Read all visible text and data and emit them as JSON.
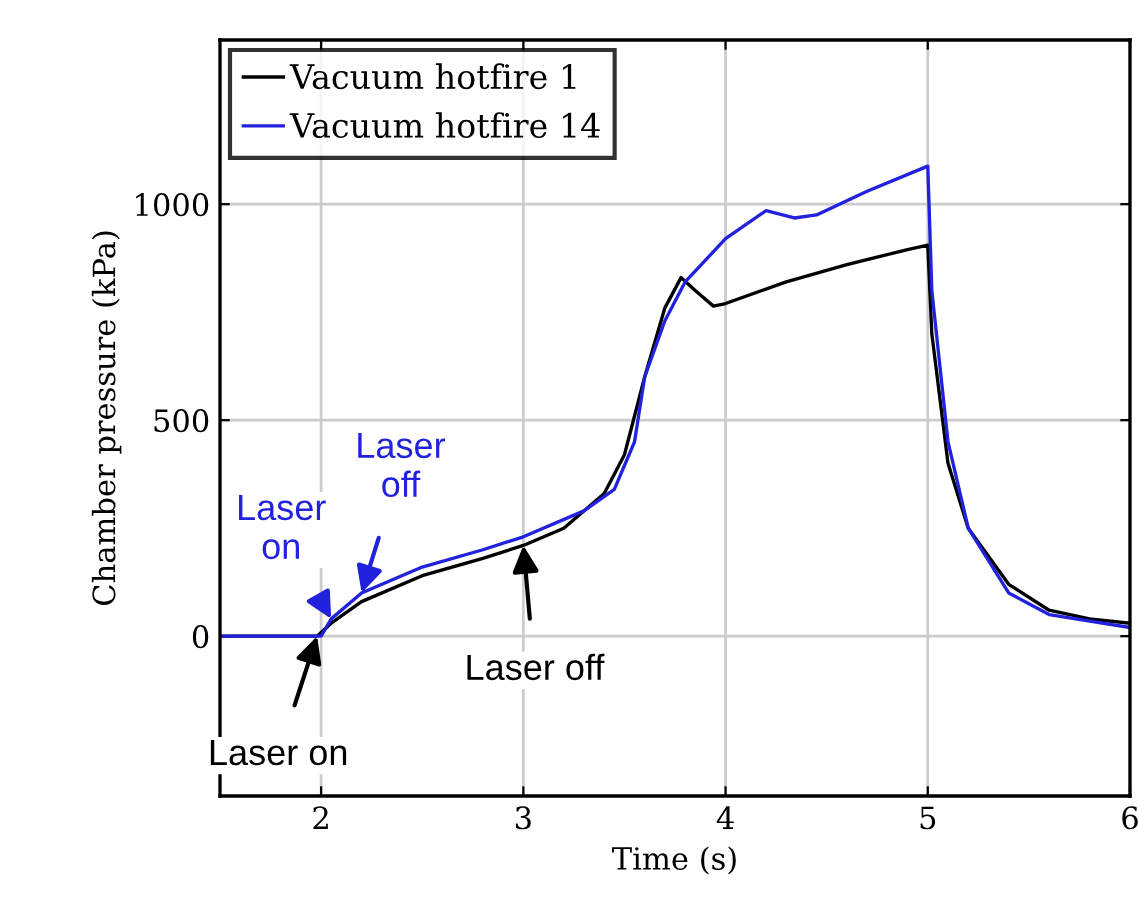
{
  "chart_data": {
    "type": "line",
    "xlabel": "Time (s)",
    "ylabel": "Chamber pressure (kPa)",
    "xlim": [
      1.5,
      6
    ],
    "ylim": [
      -370,
      1380
    ],
    "xticks": [
      2,
      3,
      4,
      5,
      6
    ],
    "yticks": [
      0,
      500,
      1000
    ],
    "grid": true,
    "legend": "top left",
    "line_style": "solid",
    "marker": "none",
    "series": [
      {
        "name": "Vacuum hotfire 1",
        "color": "#000000",
        "x": [
          1.5,
          1.98,
          2.05,
          2.2,
          2.5,
          2.8,
          3.0,
          3.2,
          3.4,
          3.5,
          3.6,
          3.7,
          3.78,
          3.85,
          3.94,
          4.0,
          4.3,
          4.6,
          4.9,
          5.0,
          5.02,
          5.1,
          5.2,
          5.4,
          5.6,
          5.8,
          6.0
        ],
        "values": [
          0,
          0,
          30,
          80,
          140,
          180,
          210,
          250,
          330,
          420,
          600,
          760,
          830,
          800,
          764,
          770,
          820,
          860,
          895,
          905,
          700,
          400,
          250,
          120,
          60,
          40,
          30
        ]
      },
      {
        "name": "Vacuum hotfire 14",
        "color": "#2222dd",
        "x": [
          1.5,
          2.0,
          2.05,
          2.2,
          2.5,
          2.8,
          3.0,
          3.3,
          3.45,
          3.55,
          3.6,
          3.7,
          3.8,
          4.0,
          4.2,
          4.34,
          4.45,
          4.7,
          5.0,
          5.02,
          5.1,
          5.2,
          5.4,
          5.6,
          6.0
        ],
        "values": [
          0,
          0,
          40,
          100,
          160,
          200,
          230,
          290,
          340,
          450,
          600,
          730,
          820,
          920,
          985,
          968,
          975,
          1030,
          1088,
          800,
          450,
          250,
          100,
          50,
          20
        ]
      }
    ],
    "annotations": [
      {
        "text": "Laser\non",
        "x": 2.05,
        "y": 40
      },
      {
        "text": "Laser\noff",
        "x": 2.2,
        "y": 100
      },
      {
        "text": "Laser off",
        "x": 3.0,
        "y": 210
      },
      {
        "text": "Laser on",
        "x": 1.98,
        "y": 0
      }
    ]
  }
}
